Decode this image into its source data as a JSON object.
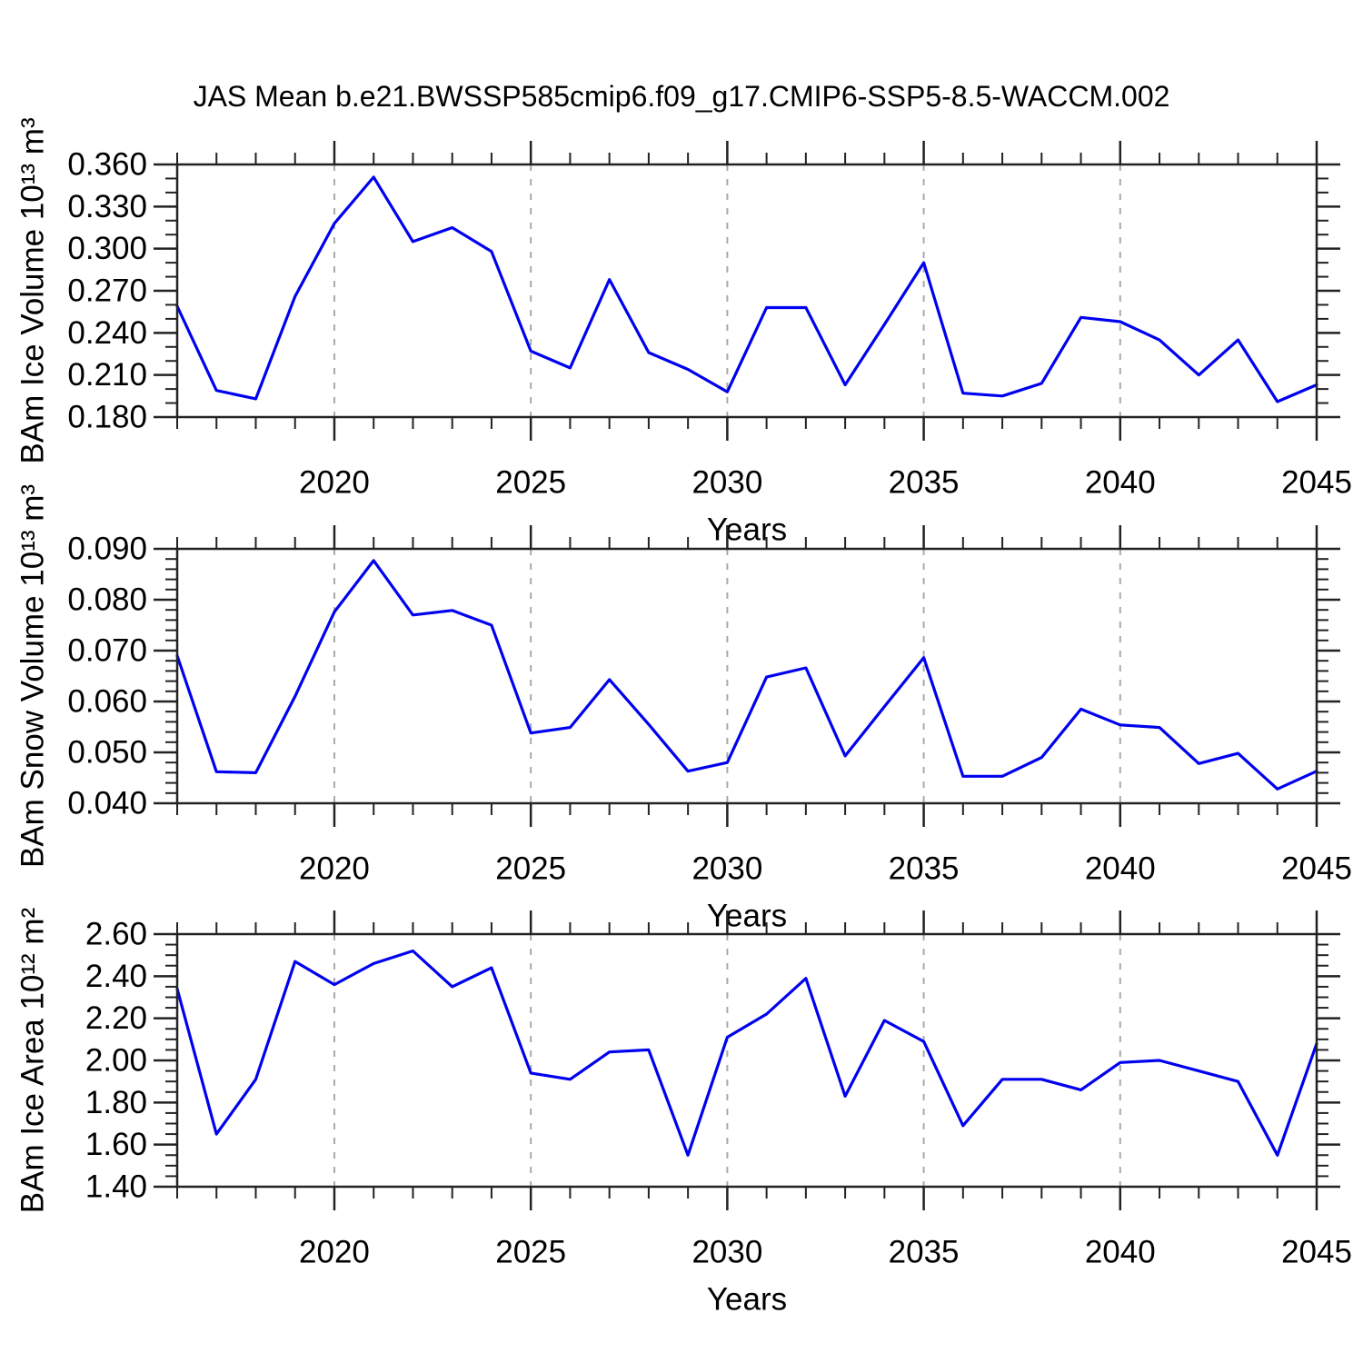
{
  "figure": {
    "title": "JAS Mean b.e21.BWSSP585cmip6.f09_g17.CMIP6-SSP5-8.5-WACCM.002"
  },
  "colors": {
    "line": "#0000f0",
    "axis": "#222222",
    "grid": "#aaaaaa",
    "text": "#000000",
    "background": "#ffffff"
  },
  "chart_data": [
    {
      "type": "line",
      "id": "ice-volume",
      "ylabel": "BAm Ice Volume 10¹³ m³",
      "xlabel": "Years",
      "x": [
        2016,
        2017,
        2018,
        2019,
        2020,
        2021,
        2022,
        2023,
        2024,
        2025,
        2026,
        2027,
        2028,
        2029,
        2030,
        2031,
        2032,
        2033,
        2034,
        2035,
        2036,
        2037,
        2038,
        2039,
        2040,
        2041,
        2042,
        2043,
        2044,
        2045
      ],
      "values": [
        0.259,
        0.199,
        0.193,
        0.266,
        0.318,
        0.351,
        0.305,
        0.315,
        0.298,
        0.227,
        0.215,
        0.278,
        0.226,
        0.214,
        0.198,
        0.258,
        0.258,
        0.203,
        0.246,
        0.29,
        0.197,
        0.195,
        0.204,
        0.251,
        0.248,
        0.235,
        0.21,
        0.235,
        0.191,
        0.203
      ],
      "xlim": [
        2016,
        2045
      ],
      "ylim": [
        0.18,
        0.36
      ],
      "xticks": [
        2020,
        2025,
        2030,
        2035,
        2040,
        2045
      ],
      "xtick_labels": [
        "2020",
        "2025",
        "2030",
        "2035",
        "2040",
        "2045"
      ],
      "x_minor_step": 1,
      "yticks": [
        0.18,
        0.21,
        0.24,
        0.27,
        0.3,
        0.33,
        0.36
      ],
      "ytick_labels": [
        "0.180",
        "0.210",
        "0.240",
        "0.270",
        "0.300",
        "0.330",
        "0.360"
      ],
      "y_minor_step": 0.01,
      "dashed_gridlines_x": [
        2020,
        2025,
        2030,
        2035,
        2040
      ],
      "legend": "none",
      "grid": "dashed-vertical-only"
    },
    {
      "type": "line",
      "id": "snow-volume",
      "ylabel": "BAm Snow Volume 10¹³ m³",
      "xlabel": "Years",
      "x": [
        2016,
        2017,
        2018,
        2019,
        2020,
        2021,
        2022,
        2023,
        2024,
        2025,
        2026,
        2027,
        2028,
        2029,
        2030,
        2031,
        2032,
        2033,
        2034,
        2035,
        2036,
        2037,
        2038,
        2039,
        2040,
        2041,
        2042,
        2043,
        2044,
        2045
      ],
      "values": [
        0.069,
        0.0462,
        0.046,
        0.061,
        0.0776,
        0.0877,
        0.077,
        0.0779,
        0.075,
        0.0538,
        0.0549,
        0.0643,
        0.0555,
        0.0463,
        0.048,
        0.0648,
        0.0666,
        0.0493,
        0.059,
        0.0686,
        0.0453,
        0.0453,
        0.049,
        0.0585,
        0.0554,
        0.0549,
        0.0478,
        0.0498,
        0.0428,
        0.0463
      ],
      "xlim": [
        2016,
        2045
      ],
      "ylim": [
        0.04,
        0.09
      ],
      "xticks": [
        2020,
        2025,
        2030,
        2035,
        2040,
        2045
      ],
      "xtick_labels": [
        "2020",
        "2025",
        "2030",
        "2035",
        "2040",
        "2045"
      ],
      "x_minor_step": 1,
      "yticks": [
        0.04,
        0.05,
        0.06,
        0.07,
        0.08,
        0.09
      ],
      "ytick_labels": [
        "0.040",
        "0.050",
        "0.060",
        "0.070",
        "0.080",
        "0.090"
      ],
      "y_minor_step": 0.002,
      "dashed_gridlines_x": [
        2020,
        2025,
        2030,
        2035,
        2040
      ],
      "legend": "none",
      "grid": "dashed-vertical-only"
    },
    {
      "type": "line",
      "id": "ice-area",
      "ylabel": "BAm Ice Area 10¹² m²",
      "xlabel": "Years",
      "x": [
        2016,
        2017,
        2018,
        2019,
        2020,
        2021,
        2022,
        2023,
        2024,
        2025,
        2026,
        2027,
        2028,
        2029,
        2030,
        2031,
        2032,
        2033,
        2034,
        2035,
        2036,
        2037,
        2038,
        2039,
        2040,
        2041,
        2042,
        2043,
        2044,
        2045
      ],
      "values": [
        2.34,
        1.65,
        1.91,
        2.47,
        2.36,
        2.46,
        2.52,
        2.35,
        2.44,
        1.94,
        1.91,
        2.04,
        2.05,
        1.55,
        2.11,
        2.22,
        2.39,
        1.83,
        2.19,
        2.09,
        1.69,
        1.91,
        1.91,
        1.86,
        1.99,
        2.0,
        1.95,
        1.9,
        1.55,
        2.08
      ],
      "xlim": [
        2016,
        2045
      ],
      "ylim": [
        1.4,
        2.6
      ],
      "xticks": [
        2020,
        2025,
        2030,
        2035,
        2040,
        2045
      ],
      "xtick_labels": [
        "2020",
        "2025",
        "2030",
        "2035",
        "2040",
        "2045"
      ],
      "x_minor_step": 1,
      "yticks": [
        1.4,
        1.6,
        1.8,
        2.0,
        2.2,
        2.4,
        2.6
      ],
      "ytick_labels": [
        "1.40",
        "1.60",
        "1.80",
        "2.00",
        "2.20",
        "2.40",
        "2.60"
      ],
      "y_minor_step": 0.05,
      "dashed_gridlines_x": [
        2020,
        2025,
        2030,
        2035,
        2040
      ],
      "legend": "none",
      "grid": "dashed-vertical-only"
    }
  ]
}
